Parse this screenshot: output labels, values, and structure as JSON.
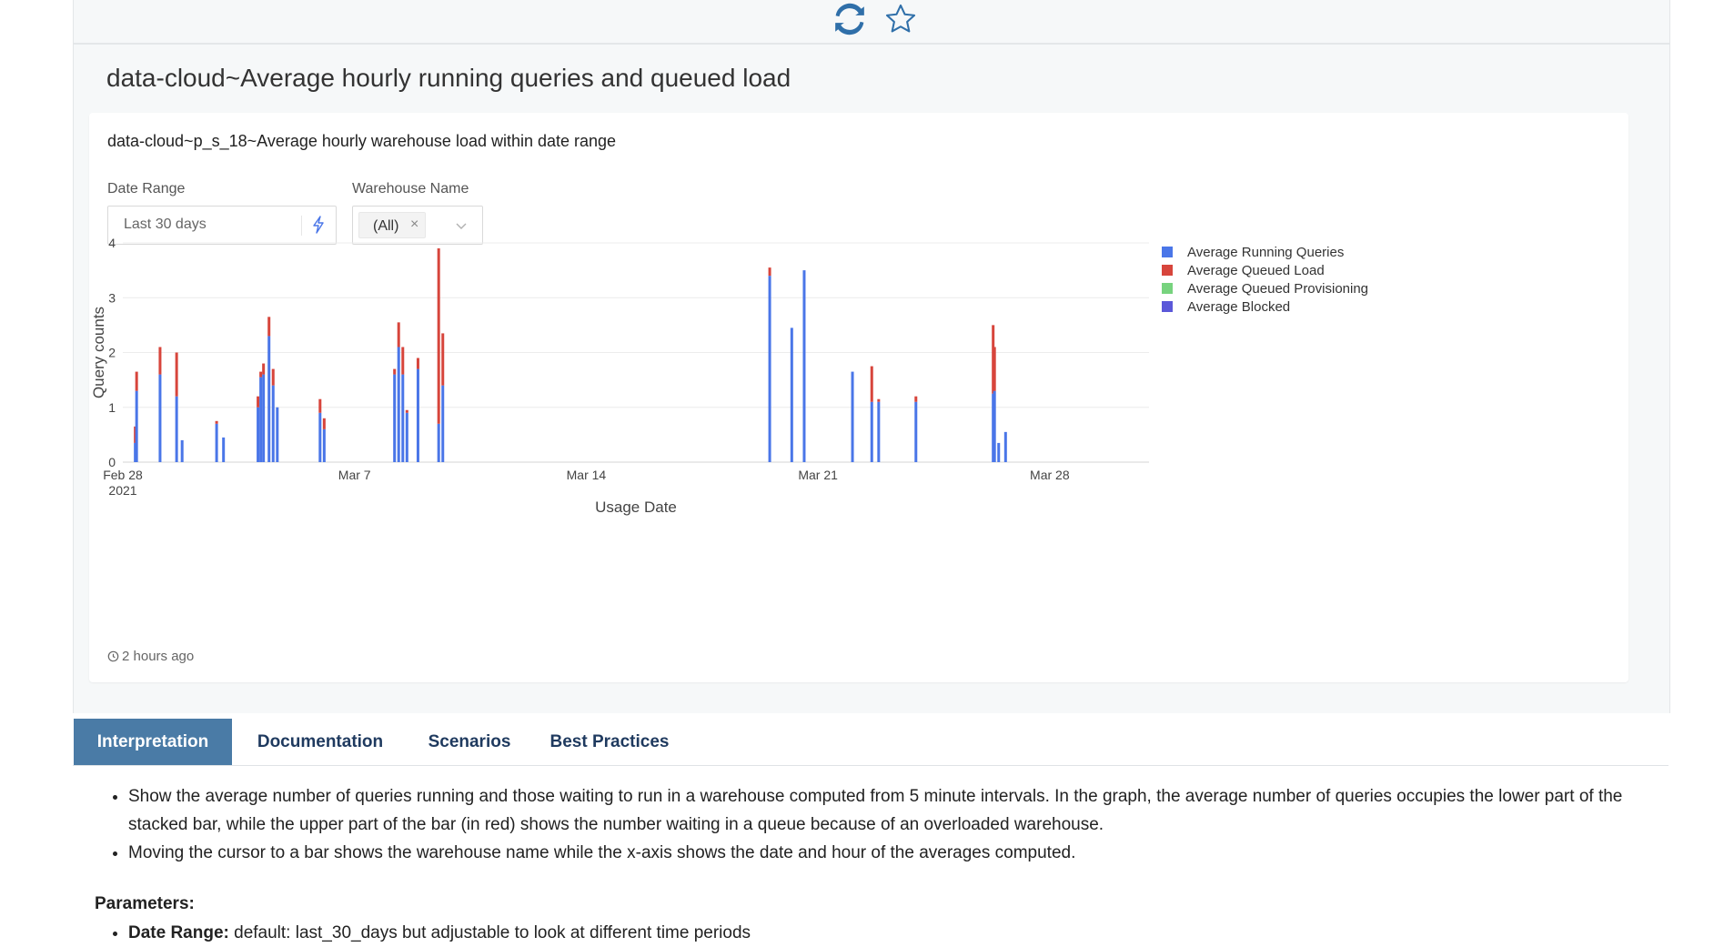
{
  "toolbar": {
    "refresh_icon": "refresh-icon",
    "favorite_icon": "star-outline-icon"
  },
  "page": {
    "title": "data-cloud~Average hourly running queries and queued load"
  },
  "card": {
    "title": "data-cloud~p_s_18~Average hourly warehouse load within date range",
    "updated": "2 hours ago"
  },
  "filters": {
    "date_range": {
      "label": "Date Range",
      "value": "Last 30 days"
    },
    "warehouse_name": {
      "label": "Warehouse Name",
      "tag": "(All)",
      "remove": "×"
    }
  },
  "chart_data": {
    "type": "bar",
    "stacked": true,
    "x_axis_type": "date",
    "xlabel": "Usage Date",
    "ylabel": "Query counts",
    "ylim": [
      0,
      4
    ],
    "xlim": [
      "2021-02-28",
      "2021-03-31"
    ],
    "yticks": [
      0,
      1,
      2,
      3,
      4
    ],
    "xticks": [
      {
        "date": "2021-02-28",
        "label": "Feb 28",
        "sublabel": "2021"
      },
      {
        "date": "2021-03-07",
        "label": "Mar 7"
      },
      {
        "date": "2021-03-14",
        "label": "Mar 14"
      },
      {
        "date": "2021-03-21",
        "label": "Mar 21"
      },
      {
        "date": "2021-03-28",
        "label": "Mar 28"
      }
    ],
    "grid": true,
    "legend_position": "right",
    "colors": [
      "#4a76e8",
      "#d7453c",
      "#77d37e",
      "#5b58d9"
    ],
    "series": [
      {
        "name": "Average Running Queries"
      },
      {
        "name": "Average Queued Load"
      },
      {
        "name": "Average Queued Provisioning"
      },
      {
        "name": "Average Blocked"
      }
    ],
    "points": [
      {
        "x": "2021-02-28 09:00",
        "running": 0.35,
        "queued": 0.3
      },
      {
        "x": "2021-02-28 10:00",
        "running": 1.3,
        "queued": 0.35
      },
      {
        "x": "2021-03-01 03:00",
        "running": 1.6,
        "queued": 0.5
      },
      {
        "x": "2021-03-01 15:00",
        "running": 1.2,
        "queued": 0.8
      },
      {
        "x": "2021-03-01 19:00",
        "running": 0.4,
        "queued": 0
      },
      {
        "x": "2021-03-02 20:00",
        "running": 0.7,
        "queued": 0.05
      },
      {
        "x": "2021-03-03 01:00",
        "running": 0.45,
        "queued": 0
      },
      {
        "x": "2021-03-04 02:00",
        "running": 1.0,
        "queued": 0.2
      },
      {
        "x": "2021-03-04 04:00",
        "running": 1.55,
        "queued": 0.1
      },
      {
        "x": "2021-03-04 06:00",
        "running": 1.6,
        "queued": 0.2
      },
      {
        "x": "2021-03-04 10:00",
        "running": 2.3,
        "queued": 0.35
      },
      {
        "x": "2021-03-04 13:00",
        "running": 1.4,
        "queued": 0.3
      },
      {
        "x": "2021-03-04 16:00",
        "running": 1.0,
        "queued": 0
      },
      {
        "x": "2021-03-05 23:00",
        "running": 0.9,
        "queued": 0.25
      },
      {
        "x": "2021-03-06 02:00",
        "running": 0.6,
        "queued": 0.2
      },
      {
        "x": "2021-03-08 05:00",
        "running": 1.6,
        "queued": 0.1
      },
      {
        "x": "2021-03-08 08:00",
        "running": 2.1,
        "queued": 0.45
      },
      {
        "x": "2021-03-08 11:00",
        "running": 1.6,
        "queued": 0.5
      },
      {
        "x": "2021-03-08 14:00",
        "running": 0.9,
        "queued": 0.05
      },
      {
        "x": "2021-03-08 22:00",
        "running": 1.7,
        "queued": 0.2
      },
      {
        "x": "2021-03-09 13:00",
        "running": 0.7,
        "queued": 3.2
      },
      {
        "x": "2021-03-09 16:00",
        "running": 1.4,
        "queued": 0.95
      },
      {
        "x": "2021-03-19 13:00",
        "running": 3.4,
        "queued": 0.15
      },
      {
        "x": "2021-03-20 05:00",
        "running": 2.45,
        "queued": 0
      },
      {
        "x": "2021-03-20 14:00",
        "running": 3.5,
        "queued": 0
      },
      {
        "x": "2021-03-22 01:00",
        "running": 1.65,
        "queued": 0
      },
      {
        "x": "2021-03-22 15:00",
        "running": 1.1,
        "queued": 0.65
      },
      {
        "x": "2021-03-22 20:00",
        "running": 1.1,
        "queued": 0.05
      },
      {
        "x": "2021-03-23 23:00",
        "running": 1.1,
        "queued": 0.1
      },
      {
        "x": "2021-03-26 07:00",
        "running": 1.25,
        "queued": 1.25
      },
      {
        "x": "2021-03-26 08:00",
        "running": 1.3,
        "queued": 0.8
      },
      {
        "x": "2021-03-26 11:00",
        "running": 0.35,
        "queued": 0
      },
      {
        "x": "2021-03-26 16:00",
        "running": 0.55,
        "queued": 0
      }
    ]
  },
  "tabs": [
    {
      "label": "Interpretation",
      "active": true
    },
    {
      "label": "Documentation",
      "active": false
    },
    {
      "label": "Scenarios",
      "active": false
    },
    {
      "label": "Best Practices",
      "active": false
    }
  ],
  "interpretation": {
    "bullets": [
      "Show the average number of queries running and those waiting to run in a warehouse computed from 5 minute intervals. In the graph, the average number of queries occupies the lower part of the stacked bar, while the upper part of the bar (in red) shows the number waiting in a queue because of an overloaded warehouse.",
      "Moving the cursor to a bar shows the warehouse name while the x-axis shows the date and hour of the averages computed."
    ],
    "parameters_heading": "Parameters:",
    "parameters": [
      {
        "name": "Date Range:",
        "text": " default: last_30_days but adjustable to look at different time periods"
      }
    ]
  }
}
